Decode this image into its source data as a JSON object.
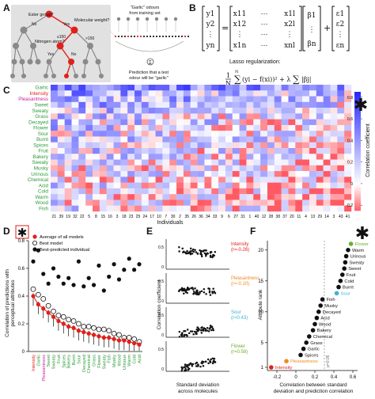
{
  "panels": {
    "A": "A",
    "B": "B",
    "C": "C",
    "D": "D",
    "E": "E",
    "F": "F"
  },
  "panel_a": {
    "node_ester": "Ester group?",
    "node_mw": "Molecular weight?",
    "node_n": "Nitrogen atom?",
    "lbl_no1": "No",
    "lbl_yes1": "Yes",
    "lbl_no2": "No",
    "lbl_yes2": "Yes",
    "lbl_no3": "No",
    "lbl_gt150": ">150",
    "lbl_le150": "≤150",
    "training_caption_1": "\"Garlic\" odours",
    "training_caption_2": "from training set",
    "prediction_caption_1": "Prediction that a test",
    "prediction_caption_2": "odour will be \"garlic\""
  },
  "panel_b": {
    "lasso_label": "Lasso regularization:",
    "y": [
      "y1",
      "y2",
      "⋮",
      "yn"
    ],
    "x_rows": [
      [
        "x11",
        "x12",
        "⋮",
        "x1n"
      ],
      [
        "⋯",
        "⋯",
        "⋯",
        "⋯"
      ],
      [
        "x1l",
        "x2l",
        "⋮",
        "xnl"
      ]
    ],
    "beta": [
      "β1",
      "⋮",
      "βn"
    ],
    "eps": [
      "ε1",
      "ε2",
      "⋮",
      "εn"
    ]
  },
  "panel_c": {
    "attributes": [
      "Garlic",
      "Intensity",
      "Pleasantness",
      "Sweet",
      "Sweaty",
      "Grass",
      "Decayed",
      "Flower",
      "Sour",
      "Burnt",
      "Spices",
      "Fruit",
      "Bakery",
      "Sweaty",
      "Musky",
      "Urinous",
      "Chemical",
      "Acid",
      "Cold",
      "Warm",
      "Wood",
      "Fish"
    ],
    "attribute_colors": {
      "Intensity": "#e0201b",
      "Pleasantness": "#cc1f9e"
    },
    "individuals": [
      "21",
      "39",
      "19",
      "32",
      "22",
      "5",
      "8",
      "15",
      "16",
      "3",
      "18",
      "23",
      "25",
      "24",
      "17",
      "10",
      "7",
      "30",
      "2",
      "35",
      "26",
      "36",
      "34",
      "33",
      "9",
      "6",
      "27",
      "31",
      "1",
      "40",
      "12",
      "28",
      "38",
      "37",
      "20",
      "11",
      "4",
      "13",
      "29",
      "14",
      "3",
      "43",
      "41"
    ],
    "xlabel": "Individuals",
    "colorbar_label": "Correlation coefficient",
    "colorbar_ticks": [
      "0.8",
      "0.6",
      "0.4",
      "0.2",
      "0",
      "-0.2"
    ]
  },
  "panel_d": {
    "ylabel_1": "Correlation of predictions with",
    "ylabel_2": "perceptual attributes",
    "legend": [
      "Average of all models",
      "Best model",
      "Best-predicted individual"
    ],
    "ylim": [
      0,
      0.8
    ],
    "yticks": [
      "0.8",
      "0.6",
      "0.4",
      "0.2",
      "0"
    ],
    "chart_data": {
      "type": "scatter",
      "categories": [
        "Intensity",
        "Garlic",
        "Pleasantness",
        "Sweet",
        "Sweaty",
        "Fruit",
        "Spices",
        "Bakery",
        "Burnt",
        "Sour",
        "Decayed",
        "Chemical",
        "Grass",
        "Flower",
        "Sweaty",
        "Fish",
        "Musky",
        "Wood",
        "Urinous",
        "Warm",
        "Cold",
        "Acid"
      ],
      "category_colors": {
        "Intensity": "#e0201b",
        "Pleasantness": "#cc1f9e"
      },
      "series": [
        {
          "name": "Average of all models",
          "values": [
            0.4,
            0.34,
            0.31,
            0.28,
            0.25,
            0.22,
            0.2,
            0.18,
            0.17,
            0.15,
            0.14,
            0.13,
            0.12,
            0.11,
            0.1,
            0.1,
            0.09,
            0.08,
            0.08,
            0.07,
            0.06,
            0.05
          ],
          "color": "#e0201b"
        },
        {
          "name": "Best model",
          "values": [
            0.45,
            0.41,
            0.38,
            0.33,
            0.29,
            0.26,
            0.25,
            0.23,
            0.22,
            0.2,
            0.18,
            0.18,
            0.17,
            0.16,
            0.16,
            0.15,
            0.13,
            0.12,
            0.1,
            0.1,
            0.09,
            0.07
          ]
        },
        {
          "name": "Best-predicted individual",
          "values": [
            0.65,
            0.73,
            0.56,
            0.49,
            0.6,
            0.54,
            0.49,
            0.53,
            0.48,
            0.65,
            0.47,
            0.53,
            0.48,
            0.62,
            0.44,
            0.54,
            0.63,
            0.52,
            0.59,
            0.67,
            0.59,
            0.63
          ]
        }
      ]
    }
  },
  "panel_e": {
    "ylabel": "Correlation coefficient",
    "xlabel_1": "Standard deviation",
    "xlabel_2": "across molecules",
    "subplots": [
      {
        "attr": "Intensity",
        "r": "(r=-0.26)",
        "color": "#e0201b"
      },
      {
        "attr": "Pleasantness",
        "r": "(r=-0.10)",
        "color": "#f08a1c"
      },
      {
        "attr": "Sour",
        "r": "(r=0.43)",
        "color": "#3fb3d0"
      },
      {
        "attr": "Flower",
        "r": "(r=0.58)",
        "color": "#6ab02e"
      }
    ]
  },
  "panel_f": {
    "ylabel": "Attribute rank",
    "xlabel_1": "Correlation between standard",
    "xlabel_2": "deviation and prediction correlation",
    "p_label": "p=0.05",
    "xticks": [
      "-0.2",
      "0",
      "0.2",
      "0.4",
      "0.6"
    ],
    "yticks": [
      "1",
      "5",
      "10",
      "15",
      "20"
    ],
    "chart_data": {
      "type": "scatter",
      "xlabel": "Correlation between standard deviation and prediction correlation",
      "ylabel": "Attribute rank",
      "xlim": [
        -0.3,
        0.65
      ],
      "points": [
        {
          "name": "Intensity",
          "x": -0.26,
          "rank": 21,
          "color": "#e0201b"
        },
        {
          "name": "Pleasantness",
          "x": -0.1,
          "rank": 20,
          "color": "#f08a1c"
        },
        {
          "name": "Spices",
          "x": 0.05,
          "rank": 19
        },
        {
          "name": "Garlic",
          "x": 0.08,
          "rank": 18
        },
        {
          "name": "Grass",
          "x": 0.11,
          "rank": 17
        },
        {
          "name": "Chemical",
          "x": 0.14,
          "rank": 16
        },
        {
          "name": "Bakery",
          "x": 0.18,
          "rank": 15
        },
        {
          "name": "Wood",
          "x": 0.2,
          "rank": 14
        },
        {
          "name": "Acid",
          "x": 0.22,
          "rank": 13
        },
        {
          "name": "Decayed",
          "x": 0.24,
          "rank": 12
        },
        {
          "name": "Musky",
          "x": 0.26,
          "rank": 11
        },
        {
          "name": "Fish",
          "x": 0.28,
          "rank": 10
        },
        {
          "name": "Sour",
          "x": 0.43,
          "rank": 9,
          "color": "#3fb3d0"
        },
        {
          "name": "Burnt",
          "x": 0.45,
          "rank": 8
        },
        {
          "name": "Cold",
          "x": 0.47,
          "rank": 7
        },
        {
          "name": "Fruit",
          "x": 0.49,
          "rank": 6
        },
        {
          "name": "Sweet",
          "x": 0.51,
          "rank": 5
        },
        {
          "name": "Sweaty",
          "x": 0.52,
          "rank": 4
        },
        {
          "name": "Urinous",
          "x": 0.53,
          "rank": 3
        },
        {
          "name": "Warm",
          "x": 0.55,
          "rank": 2
        },
        {
          "name": "Flower",
          "x": 0.58,
          "rank": 1,
          "color": "#6ab02e"
        }
      ]
    }
  },
  "star_color": "#e0201b",
  "star_glyph": "✱"
}
